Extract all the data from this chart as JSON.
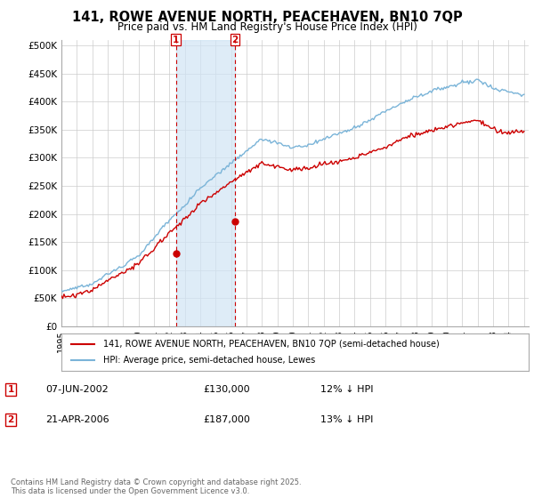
{
  "title": "141, ROWE AVENUE NORTH, PEACEHAVEN, BN10 7QP",
  "subtitle": "Price paid vs. HM Land Registry's House Price Index (HPI)",
  "ylabel_ticks": [
    "£0",
    "£50K",
    "£100K",
    "£150K",
    "£200K",
    "£250K",
    "£300K",
    "£350K",
    "£400K",
    "£450K",
    "£500K"
  ],
  "ytick_values": [
    0,
    50000,
    100000,
    150000,
    200000,
    250000,
    300000,
    350000,
    400000,
    450000,
    500000
  ],
  "hpi_color": "#7ab4d8",
  "price_color": "#cc0000",
  "sale1_year": 2002.4167,
  "sale1_price": 130000,
  "sale2_year": 2006.25,
  "sale2_price": 187000,
  "marker1_date": "07-JUN-2002",
  "marker1_price_str": "£130,000",
  "marker1_hpi_pct": "12% ↓ HPI",
  "marker2_date": "21-APR-2006",
  "marker2_price_str": "£187,000",
  "marker2_hpi_pct": "13% ↓ HPI",
  "legend_label_price": "141, ROWE AVENUE NORTH, PEACEHAVEN, BN10 7QP (semi-detached house)",
  "legend_label_hpi": "HPI: Average price, semi-detached house, Lewes",
  "footer": "Contains HM Land Registry data © Crown copyright and database right 2025.\nThis data is licensed under the Open Government Licence v3.0.",
  "background_color": "#ffffff",
  "shade_color": "#d0e4f5"
}
